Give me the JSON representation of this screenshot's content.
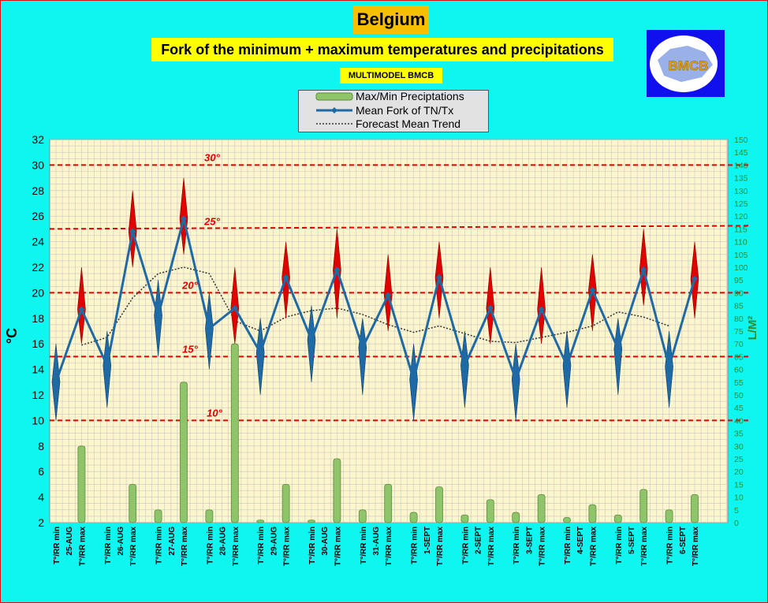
{
  "header": {
    "title": "Belgium",
    "subtitle": "Fork of the minimum + maximum temperatures and precipitations",
    "model": "MULTIMODEL BMCB",
    "logo_text": "BMCB"
  },
  "legend": {
    "items": [
      "Max/Min Preciptations",
      "Mean Fork of TN/Tx",
      "Forecast Mean Trend"
    ]
  },
  "colors": {
    "background": "#0ff5f0",
    "plot_bg": "#fdf5cc",
    "fork_line": "#1f6aa5",
    "fork_blue": "#1f6aa5",
    "fork_red": "#e00000",
    "precip": "#8fc46a",
    "threshold": "#e00000",
    "trend": "#333333",
    "right_axis": "#2d8a2d"
  },
  "chart_data": {
    "type": "line",
    "title": "Fork of the minimum + maximum temperatures and precipitations",
    "ylabel": "°C",
    "y2label": "L/M²",
    "ylim": [
      2,
      32
    ],
    "y2lim": [
      0,
      150
    ],
    "categories": [
      "T°/RR min",
      "T°/RR max",
      "T°/RR min",
      "T°/RR max",
      "T°/RR min",
      "T°/RR max",
      "T°/RR min",
      "T°/RR max",
      "T°/RR min",
      "T°/RR max",
      "T°/RR min",
      "T°/RR max",
      "T°/RR min",
      "T°/RR max",
      "T°/RR min",
      "T°/RR max",
      "T°/RR min",
      "T°/RR max",
      "T°/RR min",
      "T°/RR max",
      "T°/RR min",
      "T°/RR max",
      "T°/RR min",
      "T°/RR max",
      "T°/RR min",
      "T°/RR max"
    ],
    "dates": [
      "25-AUG",
      "26-AUG",
      "27-AUG",
      "28-AUG",
      "29-AUG",
      "30-AUG",
      "31-AUG",
      "1-SEPT",
      "2-SEPT",
      "3-SEPT",
      "4-SEPT",
      "5-SEPT",
      "6-SEPT"
    ],
    "thresholds": [
      {
        "value": 30,
        "label": "30°"
      },
      {
        "value": 25,
        "label": "25°"
      },
      {
        "value": 20,
        "label": "20°"
      },
      {
        "value": 15,
        "label": "15°"
      },
      {
        "value": 10,
        "label": "10°"
      }
    ],
    "series": [
      {
        "name": "Mean Fork of TN/Tx",
        "values": [
          13,
          18.7,
          14.3,
          24.8,
          18.2,
          25.8,
          17.2,
          18.8,
          15.3,
          21.2,
          16.3,
          21.8,
          15.7,
          19.8,
          13.2,
          21.2,
          14.3,
          18.8,
          13.2,
          18.7,
          14.3,
          20.2,
          15.6,
          21.8,
          14.2,
          21.1
        ],
        "ranges": [
          [
            10,
            16
          ],
          [
            16,
            22
          ],
          [
            11,
            17
          ],
          [
            22,
            28
          ],
          [
            15,
            21
          ],
          [
            23,
            29
          ],
          [
            14,
            20
          ],
          [
            16,
            22
          ],
          [
            12,
            18
          ],
          [
            18,
            24
          ],
          [
            13,
            19
          ],
          [
            18,
            25
          ],
          [
            12,
            18
          ],
          [
            17,
            23
          ],
          [
            10,
            16
          ],
          [
            18,
            24
          ],
          [
            11,
            17
          ],
          [
            16,
            22
          ],
          [
            10,
            16
          ],
          [
            16,
            22
          ],
          [
            11,
            17
          ],
          [
            17,
            23
          ],
          [
            12,
            18
          ],
          [
            19,
            25
          ],
          [
            11,
            17
          ],
          [
            18,
            24
          ]
        ]
      },
      {
        "name": "Forecast Mean Trend",
        "values": [
          null,
          15.9,
          16.5,
          19.6,
          21.5,
          22,
          21.5,
          17.8,
          17,
          18.1,
          18.6,
          18.8,
          18.3,
          17.5,
          16.9,
          17.4,
          16.8,
          16.2,
          16.1,
          16.5,
          16.9,
          17.4,
          18.5,
          18.1,
          17.4,
          null
        ]
      },
      {
        "name": "Max/Min Preciptations",
        "axis": "right",
        "values": [
          0,
          30,
          0,
          15,
          5,
          55,
          5,
          70,
          1,
          15,
          1,
          25,
          5,
          15,
          4,
          14,
          3,
          9,
          4,
          11,
          2,
          7,
          3,
          13,
          5,
          11
        ]
      }
    ],
    "yticks": [
      2,
      4,
      6,
      8,
      10,
      12,
      14,
      16,
      18,
      20,
      22,
      24,
      26,
      28,
      30,
      32
    ],
    "y2ticks": [
      0,
      5,
      10,
      15,
      20,
      25,
      30,
      35,
      40,
      45,
      50,
      55,
      60,
      65,
      70,
      75,
      80,
      85,
      90,
      95,
      100,
      105,
      110,
      115,
      120,
      125,
      130,
      135,
      140,
      145,
      150
    ],
    "grid": true,
    "legend_position": "top-center"
  }
}
